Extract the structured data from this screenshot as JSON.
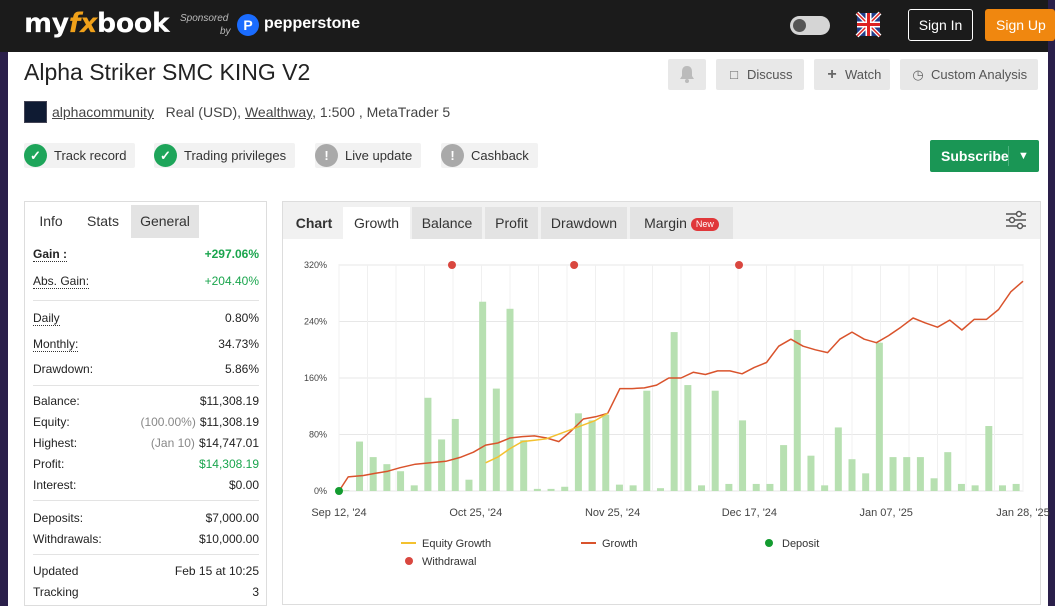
{
  "header": {
    "logo_left": "my",
    "logo_fx": "fx",
    "logo_right": "book",
    "sponsored_label": "Sponsored",
    "sponsored_by": "by",
    "sponsor_icon": "P",
    "sponsor_name": "pepperstone",
    "sign_in": "Sign In",
    "sign_up": "Sign Up"
  },
  "system": {
    "title": "Alpha Striker SMC KING V2",
    "owner": "alphacommunity",
    "account_type": "Real (USD),",
    "broker": "Wealthway",
    "details": ", 1:500 , MetaTrader 5",
    "actions": {
      "discuss": "Discuss",
      "watch": "Watch",
      "custom": "Custom Analysis"
    },
    "badges": {
      "track_record": "Track record",
      "trading_privileges": "Trading privileges",
      "live_update": "Live update",
      "cashback": "Cashback"
    },
    "subscribe": "Subscribe"
  },
  "left_tabs": {
    "info": "Info",
    "stats": "Stats",
    "general": "General"
  },
  "stats": {
    "gain_label": "Gain :",
    "gain": "+297.06%",
    "abs_gain_label": "Abs. Gain:",
    "abs_gain": "+204.40%",
    "daily_label": "Daily",
    "daily": "0.80%",
    "monthly_label": "Monthly:",
    "monthly": "34.73%",
    "drawdown_label": "Drawdown:",
    "drawdown": "5.86%",
    "balance_label": "Balance:",
    "balance": "$11,308.19",
    "equity_label": "Equity:",
    "equity_pct": "(100.00%)",
    "equity": "$11,308.19",
    "highest_label": "Highest:",
    "highest_date": "(Jan 10)",
    "highest": "$14,747.01",
    "profit_label": "Profit:",
    "profit": "$14,308.19",
    "interest_label": "Interest:",
    "interest": "$0.00",
    "deposits_label": "Deposits:",
    "deposits": "$7,000.00",
    "withdrawals_label": "Withdrawals:",
    "withdrawals": "$10,000.00",
    "updated_label": "Updated",
    "updated": "Feb 15 at 10:25",
    "tracking_label": "Tracking",
    "tracking": "3"
  },
  "chart_tabs": {
    "label": "Chart",
    "growth": "Growth",
    "balance": "Balance",
    "profit": "Profit",
    "drawdown": "Drawdown",
    "margin": "Margin",
    "new_badge": "New"
  },
  "colors": {
    "accent_green": "#1a9655",
    "growth_line": "#d9532c",
    "equity_line": "#f3c12f",
    "bar": "#b7e0b1",
    "deposit": "#139b2f",
    "withdrawal": "#d9473f"
  },
  "chart_data": {
    "type": "line",
    "x_tick_labels": [
      "Sep 12, '24",
      "Oct 25, '24",
      "Nov 25, '24",
      "Dec 17, '24",
      "Jan 07, '25",
      "Jan 28, '25"
    ],
    "y_tick_labels": [
      "0%",
      "80%",
      "160%",
      "240%",
      "320%"
    ],
    "ylim": [
      0,
      320
    ],
    "legend": [
      "Equity Growth",
      "Growth",
      "Deposit",
      "Withdrawal"
    ],
    "legend_position": "bottom",
    "series": [
      {
        "name": "Growth",
        "points": [
          [
            0,
            0
          ],
          [
            3,
            20
          ],
          [
            8,
            22
          ],
          [
            12,
            25
          ],
          [
            16,
            28
          ],
          [
            20,
            33
          ],
          [
            25,
            38
          ],
          [
            30,
            40
          ],
          [
            35,
            42
          ],
          [
            40,
            48
          ],
          [
            44,
            55
          ],
          [
            48,
            65
          ],
          [
            52,
            68
          ],
          [
            56,
            75
          ],
          [
            60,
            77
          ],
          [
            64,
            78
          ],
          [
            68,
            75
          ],
          [
            72,
            70
          ],
          [
            76,
            85
          ],
          [
            80,
            102
          ],
          [
            84,
            105
          ],
          [
            88,
            110
          ],
          [
            92,
            145
          ],
          [
            96,
            145
          ],
          [
            100,
            146
          ],
          [
            104,
            150
          ],
          [
            108,
            160
          ],
          [
            112,
            160
          ],
          [
            116,
            168
          ],
          [
            120,
            165
          ],
          [
            124,
            170
          ],
          [
            128,
            170
          ],
          [
            132,
            166
          ],
          [
            136,
            175
          ],
          [
            140,
            182
          ],
          [
            144,
            205
          ],
          [
            148,
            215
          ],
          [
            152,
            205
          ],
          [
            156,
            200
          ],
          [
            160,
            196
          ],
          [
            164,
            215
          ],
          [
            168,
            225
          ],
          [
            172,
            215
          ],
          [
            176,
            210
          ],
          [
            180,
            220
          ],
          [
            184,
            232
          ],
          [
            188,
            245
          ],
          [
            192,
            238
          ],
          [
            196,
            232
          ],
          [
            200,
            242
          ],
          [
            204,
            228
          ],
          [
            208,
            243
          ],
          [
            212,
            243
          ],
          [
            216,
            257
          ],
          [
            220,
            282
          ],
          [
            224,
            297
          ]
        ]
      },
      {
        "name": "Equity Growth",
        "points": [
          [
            48,
            40
          ],
          [
            52,
            48
          ],
          [
            56,
            60
          ],
          [
            60,
            70
          ],
          [
            64,
            72
          ],
          [
            68,
            74
          ],
          [
            84,
            100
          ],
          [
            88,
            110
          ]
        ]
      }
    ],
    "bars": [
      1,
      70,
      48,
      38,
      28,
      8,
      132,
      73,
      102,
      16,
      268,
      145,
      258,
      72,
      3,
      3,
      6,
      110,
      100,
      108,
      9,
      8,
      142,
      4,
      225,
      150,
      8,
      142,
      10,
      100,
      10,
      10,
      65,
      228,
      50,
      8,
      90,
      45,
      25,
      210,
      48,
      48,
      48,
      18,
      55,
      10,
      8,
      92,
      8,
      10
    ],
    "deposits": [
      [
        0,
        0
      ]
    ],
    "withdrawals": [
      [
        37,
        320
      ],
      [
        77,
        320
      ],
      [
        131,
        320
      ]
    ]
  }
}
